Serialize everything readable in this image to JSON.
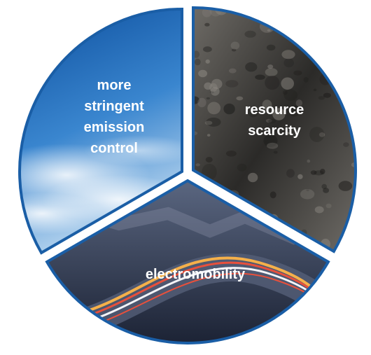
{
  "segments": [
    {
      "id": "emission",
      "label_lines": [
        "more",
        "stringent",
        "emission",
        "control"
      ],
      "text_color": "#ffffff",
      "theme": "blue-sky-with-clouds"
    },
    {
      "id": "resources",
      "label_lines": [
        "resource",
        "scarcity"
      ],
      "text_color": "#ffffff",
      "theme": "dark-grey-rock-soil"
    },
    {
      "id": "mobility",
      "label_lines": [
        "electromobility"
      ],
      "text_color": "#ffffff",
      "theme": "night-highway-light-trails"
    }
  ],
  "colors": {
    "border": "#1a5ea6",
    "sky_top": "#0d4f9e",
    "sky_mid": "#3a86cf",
    "sky_bottom": "#b9d6ef",
    "rock_dark": "#2b2a28",
    "rock_light": "#6e6b66",
    "road_dark": "#1c2335",
    "road_light": "#5a6680",
    "trail_red": "#e8503c",
    "trail_orange": "#f5b04a",
    "trail_white": "#f4f4f8"
  }
}
